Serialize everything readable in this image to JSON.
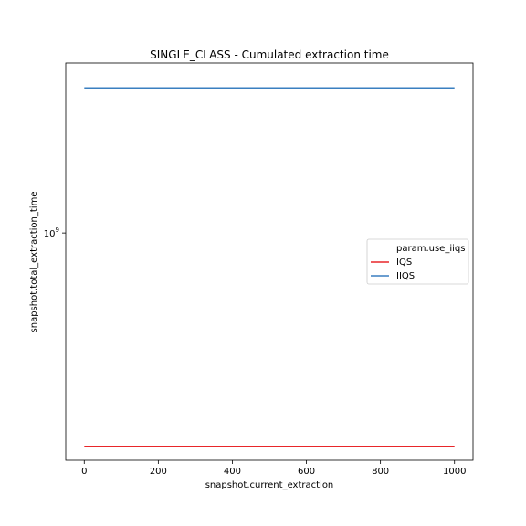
{
  "chart_data": {
    "type": "line",
    "title": "SINGLE_CLASS - Cumulated extraction time",
    "xlabel": "snapshot.current_extraction",
    "ylabel": "snapshot.total_extraction_time",
    "xlim": [
      -50,
      1050
    ],
    "ylim": [
      820000000,
      1160000000
    ],
    "yscale": "log",
    "x_ticks": [
      0,
      200,
      400,
      600,
      800,
      1000
    ],
    "y_ticks": [
      {
        "value": 1000000000,
        "base": "10",
        "exp": "9"
      }
    ],
    "grid": false,
    "legend": {
      "title": "param.use_iiqs",
      "placement": "center-right"
    },
    "series": [
      {
        "name": "IQS",
        "color": "#e8262a",
        "x": [
          0,
          1000
        ],
        "y": [
          830000000,
          830000000
        ]
      },
      {
        "name": "IIQS",
        "color": "#3a7fc0",
        "x": [
          0,
          1000
        ],
        "y": [
          1135000000,
          1135000000
        ]
      }
    ]
  }
}
